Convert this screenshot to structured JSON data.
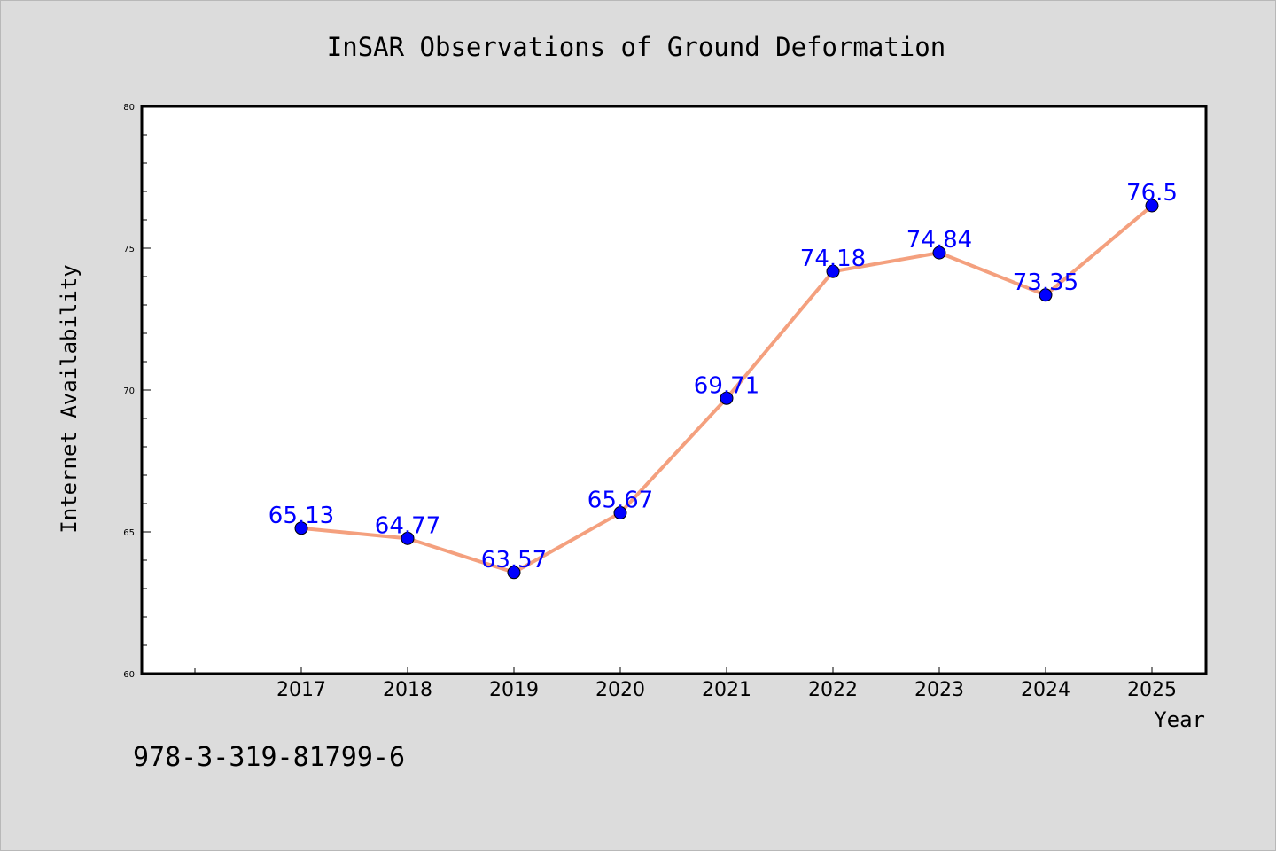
{
  "chart_data": {
    "type": "line",
    "title": "InSAR Observations of Ground Deformation",
    "xlabel": "Year",
    "ylabel": "Internet Availability",
    "x": [
      "2017",
      "2018",
      "2019",
      "2020",
      "2021",
      "2022",
      "2023",
      "2024",
      "2025"
    ],
    "series": [
      {
        "values": [
          65.13,
          64.77,
          63.57,
          65.67,
          69.71,
          74.18,
          74.84,
          73.35,
          76.5
        ]
      }
    ],
    "data_labels": [
      "65.13",
      "64.77",
      "63.57",
      "65.67",
      "69.71",
      "74.18",
      "74.84",
      "73.35",
      "76.5"
    ],
    "y_ticks": [
      "60",
      "65",
      "70",
      "75",
      "80"
    ],
    "ylim": [
      60,
      80
    ],
    "grid": false,
    "colors": {
      "line": "#f4a07e",
      "marker": "#0000ff",
      "label": "#0000ff",
      "background": "#dcdcdc",
      "plot_background": "#ffffff"
    }
  },
  "annotation": "978-3-319-81799-6"
}
